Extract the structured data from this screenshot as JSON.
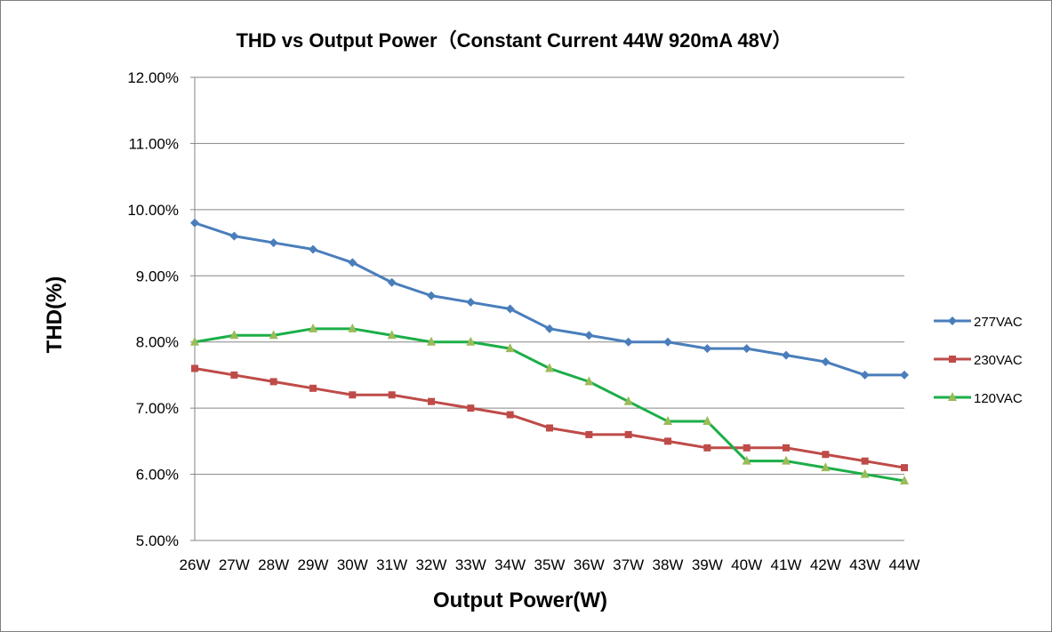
{
  "chart_data": {
    "type": "line",
    "title": "THD vs Output Power（Constant Current 44W   920mA 48V）",
    "xlabel": "Output Power(W)",
    "ylabel": "THD(%)",
    "categories": [
      "26W",
      "27W",
      "28W",
      "29W",
      "30W",
      "31W",
      "32W",
      "33W",
      "34W",
      "35W",
      "36W",
      "37W",
      "38W",
      "39W",
      "40W",
      "41W",
      "42W",
      "43W",
      "44W"
    ],
    "ylim": [
      5.0,
      12.0
    ],
    "yticks": [
      "5.00%",
      "6.00%",
      "7.00%",
      "8.00%",
      "9.00%",
      "10.00%",
      "11.00%",
      "12.00%"
    ],
    "grid": true,
    "legend_position": "right",
    "series": [
      {
        "name": "277VAC",
        "color": "#4a7ebb",
        "marker": "diamond",
        "values": [
          9.8,
          9.6,
          9.5,
          9.4,
          9.2,
          8.9,
          8.7,
          8.6,
          8.5,
          8.2,
          8.1,
          8.0,
          8.0,
          7.9,
          7.9,
          7.8,
          7.7,
          7.5,
          7.5
        ]
      },
      {
        "name": "230VAC",
        "color": "#be4b48",
        "marker": "square",
        "values": [
          7.6,
          7.5,
          7.4,
          7.3,
          7.2,
          7.2,
          7.1,
          7.0,
          6.9,
          6.7,
          6.6,
          6.6,
          6.5,
          6.4,
          6.4,
          6.4,
          6.3,
          6.2,
          6.1
        ]
      },
      {
        "name": "120VAC",
        "color": "#1cae48",
        "marker": "triangle",
        "marker_color": "#9bbb59",
        "values": [
          8.0,
          8.1,
          8.1,
          8.2,
          8.2,
          8.1,
          8.0,
          8.0,
          7.9,
          7.6,
          7.4,
          7.1,
          6.8,
          6.8,
          6.2,
          6.2,
          6.1,
          6.0,
          5.9
        ]
      }
    ]
  }
}
